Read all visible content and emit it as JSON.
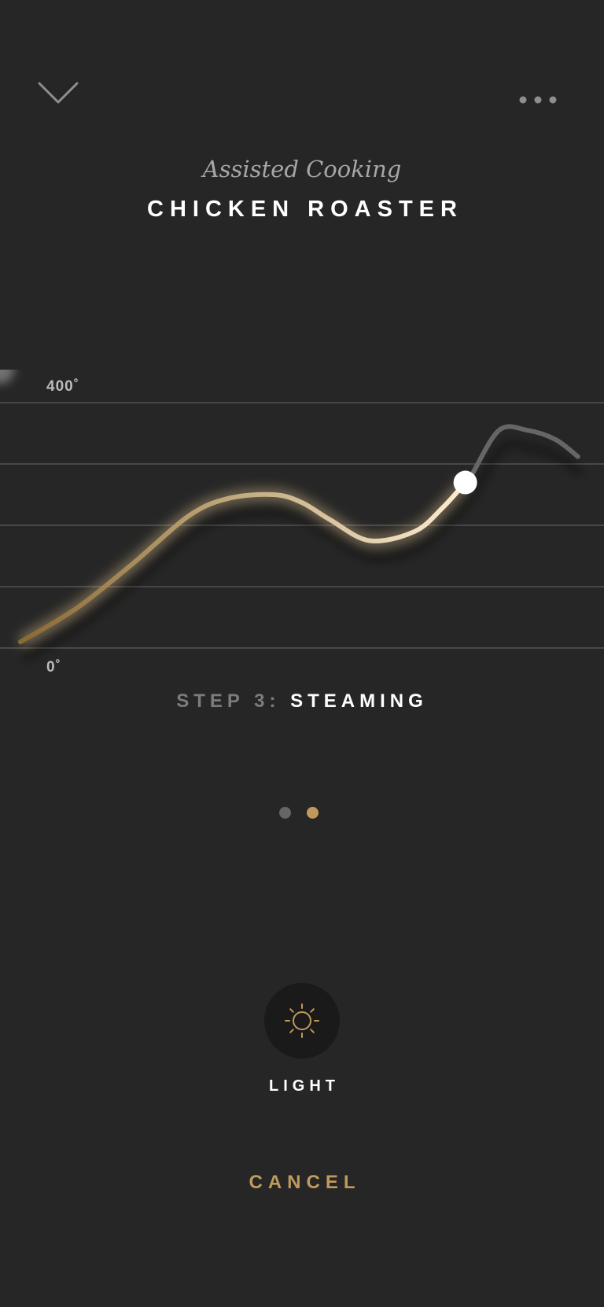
{
  "header": {
    "back_icon": "chevron-down-icon",
    "more_icon": "more-dots-icon",
    "subtitle": "Assisted Cooking",
    "title": "CHICKEN ROASTER"
  },
  "chart_data": {
    "type": "line",
    "y_top_label": "400˚",
    "y_bottom_label": "0˚",
    "ylim": [
      0,
      400
    ],
    "gridlines": [
      0,
      100,
      200,
      300,
      400
    ],
    "curve_x": [
      0,
      10,
      20,
      30,
      37,
      45,
      50,
      55,
      62,
      70,
      75,
      80,
      85,
      90,
      95,
      99
    ],
    "curve_y": [
      10,
      65,
      138,
      216,
      244,
      250,
      237,
      209,
      175,
      190,
      229,
      280,
      355,
      355,
      340,
      312
    ],
    "progress_x": 79,
    "colors": {
      "start": "#8a6a33",
      "end": "#fff0d6",
      "remaining": "#666666",
      "grid": "#5e5e5e"
    }
  },
  "step": {
    "prefix": "STEP 3:",
    "name": "STEAMING"
  },
  "pager": {
    "count": 2,
    "active_index": 1,
    "active_color": "#c09a5d",
    "inactive_color": "#666666"
  },
  "controls": {
    "light_icon": "sun-icon",
    "light_label": "LIGHT",
    "cancel_label": "CANCEL",
    "accent_color": "#c09a5d"
  }
}
